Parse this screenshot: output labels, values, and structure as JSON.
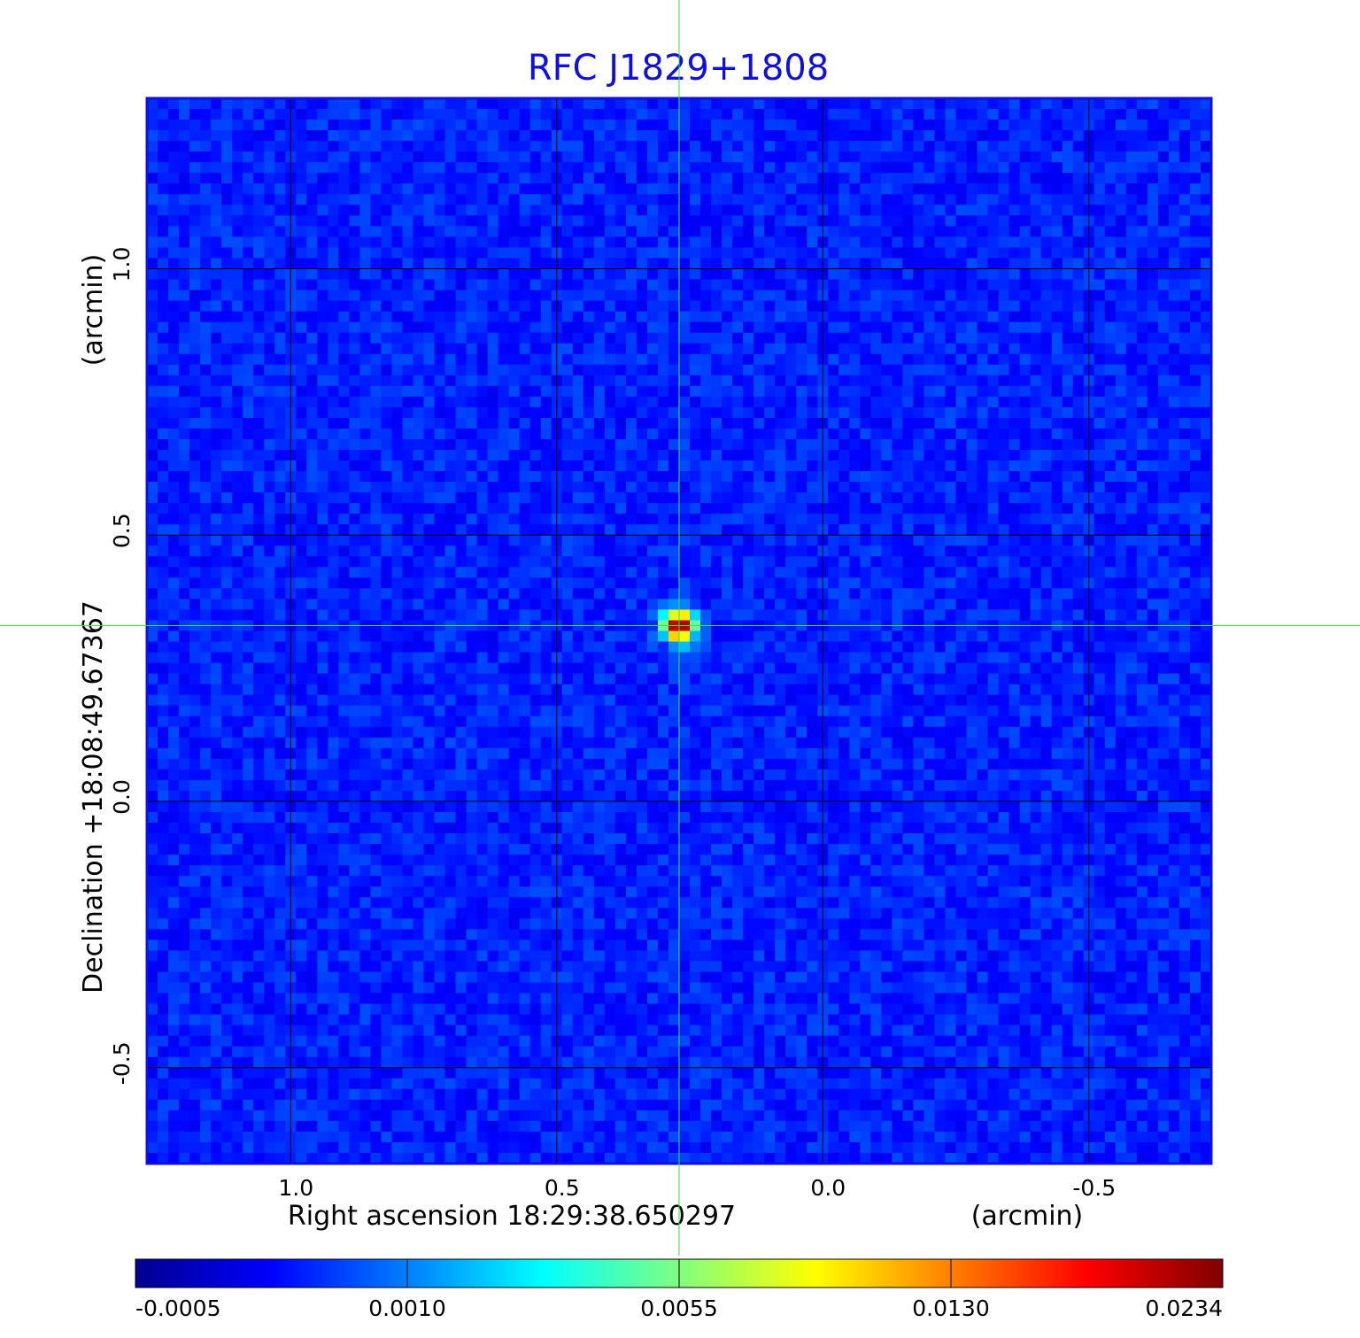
{
  "chart_data": {
    "type": "heatmap",
    "title": "RFC J1829+1808",
    "xlabel": "Right ascension  18:29:38.650297",
    "xunit": "(arcmin)",
    "ylabel": "Declination  +18:08:49.67367",
    "yunit": "(arcmin)",
    "x_ticks": [
      "1.0",
      "0.5",
      "0.0",
      "-0.5"
    ],
    "x_tick_values": [
      1.0,
      0.5,
      0.0,
      -0.5
    ],
    "y_ticks": [
      "1.0",
      "0.5",
      "0.0",
      "-0.5"
    ],
    "y_tick_values": [
      1.0,
      0.5,
      0.0,
      -0.5
    ],
    "xlim": [
      1.27,
      -0.73
    ],
    "ylim": [
      -0.68,
      1.32
    ],
    "grid": true,
    "colormap": "jet",
    "colorbar_ticks": [
      "-0.0005",
      "0.0010",
      "0.0055",
      "0.0130",
      "0.0234"
    ],
    "colorbar_range": [
      -0.0005,
      0.0234
    ],
    "source": {
      "x": 0.27,
      "y": 0.33,
      "peak": 0.0234
    },
    "crosshair_color": "#3ee03e",
    "grid_color": "#000000",
    "frame_color": "#1010d8"
  }
}
